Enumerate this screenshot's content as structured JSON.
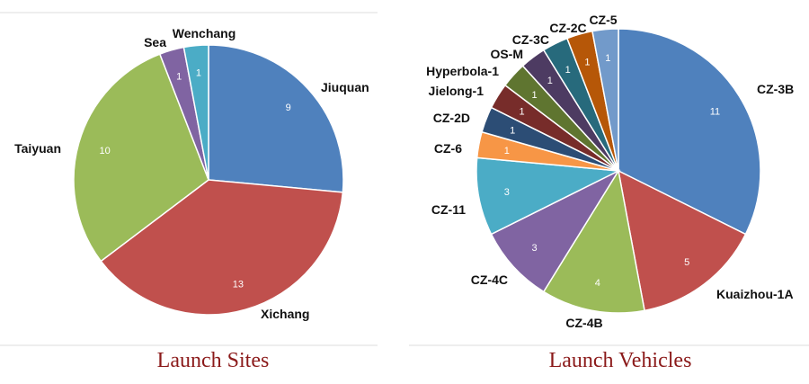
{
  "chart_data": [
    {
      "type": "pie",
      "title": "Launch Sites",
      "labels": [
        "Jiuquan",
        "Xichang",
        "Taiyuan",
        "Sea",
        "Wenchang"
      ],
      "values": [
        9,
        13,
        10,
        1,
        1
      ],
      "colors": [
        "#4f81bd",
        "#c0504d",
        "#9bbb59",
        "#8064a2",
        "#4bacc6"
      ],
      "start": "12 o'clock",
      "direction": "clockwise"
    },
    {
      "type": "pie",
      "title": "Launch Vehicles",
      "labels": [
        "CZ-3B",
        "Kuaizhou-1A",
        "CZ-4B",
        "CZ-4C",
        "CZ-11",
        "CZ-6",
        "CZ-2D",
        "Jielong-1",
        "Hyperbola-1",
        "OS-M",
        "CZ-3C",
        "CZ-2C",
        "CZ-5"
      ],
      "values": [
        11,
        5,
        4,
        3,
        3,
        1,
        1,
        1,
        1,
        1,
        1,
        1,
        1
      ],
      "colors": [
        "#4f81bd",
        "#c0504d",
        "#9bbb59",
        "#8064a2",
        "#4bacc6",
        "#f79646",
        "#2c4d75",
        "#772c2a",
        "#5f7530",
        "#4d3b62",
        "#276a7c",
        "#b65708",
        "#729aca"
      ],
      "start": "12 o'clock",
      "direction": "clockwise"
    }
  ]
}
